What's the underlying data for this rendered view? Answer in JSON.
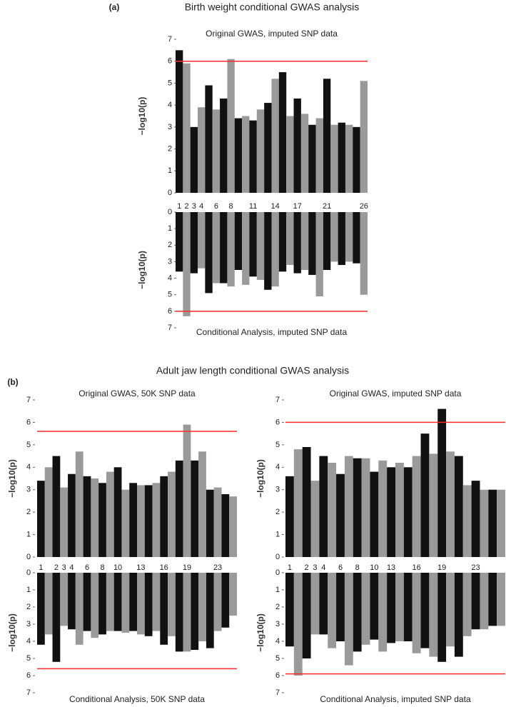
{
  "figure": {
    "label_a": "(a)",
    "title_a": "Birth weight conditional GWAS analysis",
    "label_b": "(b)",
    "title_b": "Adult jaw length conditional GWAS analysis"
  },
  "chart_data": [
    {
      "type": "manhattan",
      "title": "Original GWAS, imputed SNP data",
      "ylabel": "−log10(p)",
      "categories": [
        "1",
        "2",
        "3",
        "4",
        null,
        "6",
        null,
        "8",
        null,
        null,
        "11",
        null,
        null,
        "14",
        null,
        null,
        "17",
        null,
        null,
        null,
        "21",
        null,
        null,
        null,
        null,
        "26"
      ],
      "values": [
        6.5,
        5.9,
        3.0,
        3.9,
        4.9,
        3.8,
        4.3,
        6.1,
        3.4,
        3.5,
        3.3,
        3.8,
        4.1,
        5.2,
        5.5,
        3.5,
        4.3,
        3.6,
        3.1,
        3.4,
        5.2,
        3.1,
        3.2,
        3.1,
        3.0,
        5.1
      ],
      "ylim": [
        0,
        7
      ],
      "yticks": [
        0,
        1,
        2,
        3,
        4,
        5,
        6,
        7
      ],
      "threshold": 6,
      "threshold_color": "#ff2a2a",
      "colors": [
        "#111111",
        "#9a9a9a"
      ]
    },
    {
      "type": "manhattan",
      "title": "Conditional Analysis, imputed SNP data",
      "ylabel": "−log10(p)",
      "inverted": true,
      "values": [
        3.6,
        6.3,
        3.7,
        3.4,
        4.9,
        4.3,
        4.3,
        4.5,
        3.5,
        4.4,
        3.9,
        4.1,
        4.7,
        4.5,
        3.6,
        3.2,
        3.7,
        3.5,
        3.8,
        5.1,
        3.5,
        3.0,
        3.2,
        3.0,
        3.1,
        5.0
      ],
      "ylim": [
        0,
        7
      ],
      "yticks": [
        0,
        1,
        2,
        3,
        4,
        5,
        6,
        7
      ],
      "threshold": 6,
      "threshold_color": "#ff2a2a",
      "colors": [
        "#111111",
        "#9a9a9a"
      ]
    },
    {
      "type": "manhattan",
      "title": "Original GWAS, 50K SNP data",
      "ylabel": "−log10(p)",
      "categories": [
        "1",
        null,
        "2",
        "3",
        "4",
        null,
        "6",
        null,
        "8",
        null,
        "10",
        null,
        null,
        "13",
        null,
        null,
        "16",
        null,
        null,
        "19",
        null,
        null,
        null,
        "23",
        null,
        null
      ],
      "values": [
        3.4,
        4.0,
        4.5,
        3.1,
        3.7,
        4.7,
        3.6,
        3.5,
        3.3,
        3.8,
        4.0,
        3.0,
        3.3,
        3.2,
        3.2,
        3.3,
        3.6,
        3.8,
        4.3,
        5.9,
        4.3,
        4.7,
        3.0,
        3.1,
        2.8,
        2.7
      ],
      "ylim": [
        0,
        7
      ],
      "yticks": [
        0,
        1,
        2,
        3,
        4,
        5,
        6,
        7
      ],
      "threshold": 5.6,
      "threshold_color": "#ff2a2a",
      "colors": [
        "#111111",
        "#9a9a9a"
      ]
    },
    {
      "type": "manhattan",
      "title": "Conditional Analysis, 50K SNP data",
      "ylabel": "−log10(p)",
      "inverted": true,
      "values": [
        4.2,
        3.6,
        5.2,
        3.1,
        3.3,
        4.2,
        3.4,
        3.8,
        3.6,
        3.4,
        3.4,
        3.5,
        3.4,
        3.6,
        3.7,
        3.4,
        4.2,
        3.7,
        4.6,
        4.6,
        4.5,
        4.0,
        4.4,
        3.4,
        3.2,
        2.5
      ],
      "ylim": [
        0,
        7
      ],
      "yticks": [
        0,
        1,
        2,
        3,
        4,
        5,
        6,
        7
      ],
      "threshold": 5.6,
      "threshold_color": "#ff2a2a",
      "colors": [
        "#111111",
        "#9a9a9a"
      ]
    },
    {
      "type": "manhattan",
      "title": "Original GWAS, imputed SNP data",
      "ylabel": "−log10(p)",
      "categories": [
        "1",
        null,
        "2",
        "3",
        "4",
        null,
        "6",
        null,
        "8",
        null,
        "10",
        null,
        "13",
        null,
        null,
        "16",
        null,
        null,
        "19",
        null,
        null,
        null,
        "23",
        null,
        null,
        null
      ],
      "values": [
        3.6,
        4.8,
        4.9,
        3.4,
        4.5,
        4.2,
        3.7,
        4.5,
        4.4,
        4.4,
        3.8,
        4.3,
        4.0,
        4.2,
        4.0,
        4.5,
        5.5,
        4.6,
        6.6,
        4.7,
        4.5,
        3.2,
        3.4,
        3.0,
        3.0,
        3.0
      ],
      "ylim": [
        0,
        7
      ],
      "yticks": [
        0,
        1,
        2,
        3,
        4,
        5,
        6,
        7
      ],
      "threshold": 6,
      "threshold_color": "#ff2a2a",
      "colors": [
        "#111111",
        "#9a9a9a"
      ]
    },
    {
      "type": "manhattan",
      "title": "Conditional Analysis, imputed SNP data",
      "ylabel": "−log10(p)",
      "inverted": true,
      "values": [
        4.3,
        6.0,
        5.0,
        3.6,
        3.6,
        4.4,
        4.0,
        5.4,
        4.6,
        4.2,
        3.9,
        4.6,
        4.1,
        4.0,
        4.0,
        4.7,
        4.4,
        4.9,
        5.2,
        4.3,
        4.9,
        3.7,
        3.3,
        3.3,
        3.1,
        3.1
      ],
      "ylim": [
        0,
        7
      ],
      "yticks": [
        0,
        1,
        2,
        3,
        4,
        5,
        6,
        7
      ],
      "threshold": 5.9,
      "threshold_color": "#ff2a2a",
      "colors": [
        "#111111",
        "#9a9a9a"
      ]
    }
  ]
}
